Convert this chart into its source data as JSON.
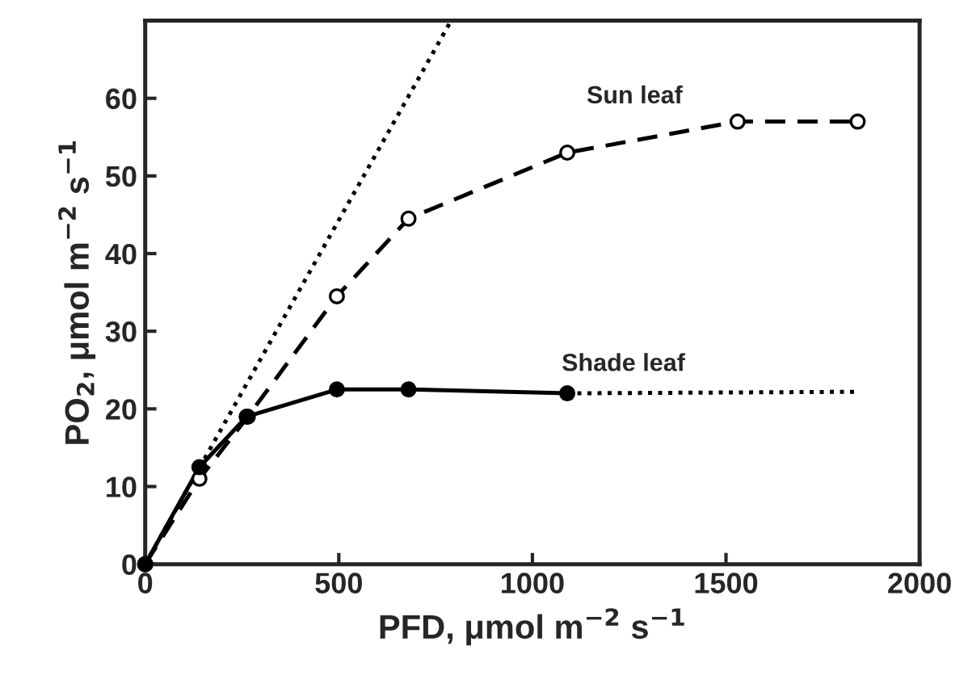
{
  "chart_data": {
    "type": "line",
    "xlabel": "PFD, μmol m$^{−2}$ s$^{−1}$",
    "ylabel": "PO$_{2}$, μmol m$^{−2}$ s$^{−1}$",
    "xlim": [
      0,
      2000
    ],
    "ylim": [
      0,
      70
    ],
    "xticks": [
      0,
      500,
      1000,
      1500,
      2000
    ],
    "yticks": [
      0,
      10,
      20,
      30,
      40,
      50,
      60
    ],
    "grid": false,
    "legend": false,
    "series": [
      {
        "name": "Sun leaf",
        "color": "#000000",
        "x": [
          0,
          140,
          265,
          495,
          680,
          1090,
          1530,
          1840
        ],
        "values": [
          0,
          11,
          19,
          34.5,
          44.5,
          53,
          57,
          57
        ],
        "marker": "circle",
        "line_style": "dashed"
      },
      {
        "name": "Shade leaf",
        "color": "#000000",
        "x": [
          0,
          140,
          262,
          495,
          680,
          1090
        ],
        "values": [
          0,
          12.5,
          19,
          22.5,
          22.5,
          22
        ],
        "marker": "circle",
        "line_style": "solid"
      },
      {
        "color": "#000000",
        "x": [
          1090,
          1840
        ],
        "values": [
          22,
          22.2
        ],
        "marker": "none",
        "line_style": "dotted"
      },
      {
        "color": "#000000",
        "x": [
          0,
          790
        ],
        "values": [
          0,
          70
        ],
        "marker": "none",
        "line_style": "dotted"
      }
    ]
  }
}
